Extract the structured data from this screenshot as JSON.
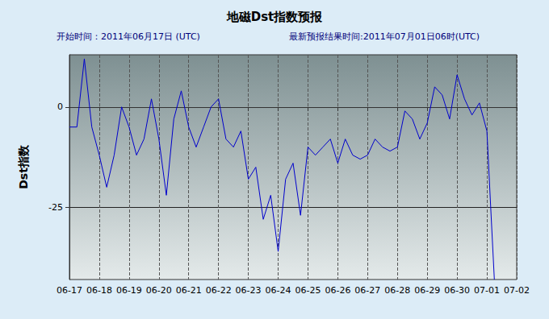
{
  "chart_data": {
    "type": "line",
    "title": "地磁Dst指数预报",
    "annotations": [
      "开始时间：2011年06月17日 (UTC)",
      "最新预报结果时间:2011年07月01日06时(UTC)"
    ],
    "y_label": "Dst指数",
    "categories": [
      "06-17",
      null,
      null,
      null,
      "06-18",
      null,
      null,
      null,
      "06-19",
      null,
      null,
      null,
      "06-20",
      null,
      null,
      null,
      "06-21",
      null,
      null,
      null,
      "06-22",
      null,
      null,
      null,
      "06-23",
      null,
      null,
      null,
      "06-24",
      null,
      null,
      null,
      "06-25",
      null,
      null,
      null,
      "06-26",
      null,
      null,
      null,
      "06-27",
      null,
      null,
      null,
      "06-28",
      null,
      null,
      null,
      "06-29",
      null,
      null,
      null,
      "06-30",
      null,
      null,
      null,
      "07-01",
      null,
      null,
      null,
      "07-02"
    ],
    "values": [
      -5,
      -5,
      12,
      -5,
      -12,
      -20,
      -12,
      0,
      -5,
      -12,
      -8,
      2,
      -8,
      -22,
      -3,
      4,
      -5,
      -10,
      -5,
      0,
      2,
      -8,
      -10,
      -6,
      -18,
      -15,
      -28,
      -22,
      -36,
      -18,
      -14,
      -27,
      -10,
      -12,
      -10,
      -8,
      -14,
      -8,
      -12,
      -13,
      -12,
      -8,
      -10,
      -11,
      -10,
      -1,
      -3,
      -8,
      -4,
      5,
      3,
      -3,
      8,
      2,
      -2,
      1,
      -6,
      -43,
      null,
      null,
      null
    ],
    "color": "#0000cc",
    "ylim": [
      -43,
      13
    ],
    "yticks": [
      -25,
      0
    ],
    "grid": true
  }
}
